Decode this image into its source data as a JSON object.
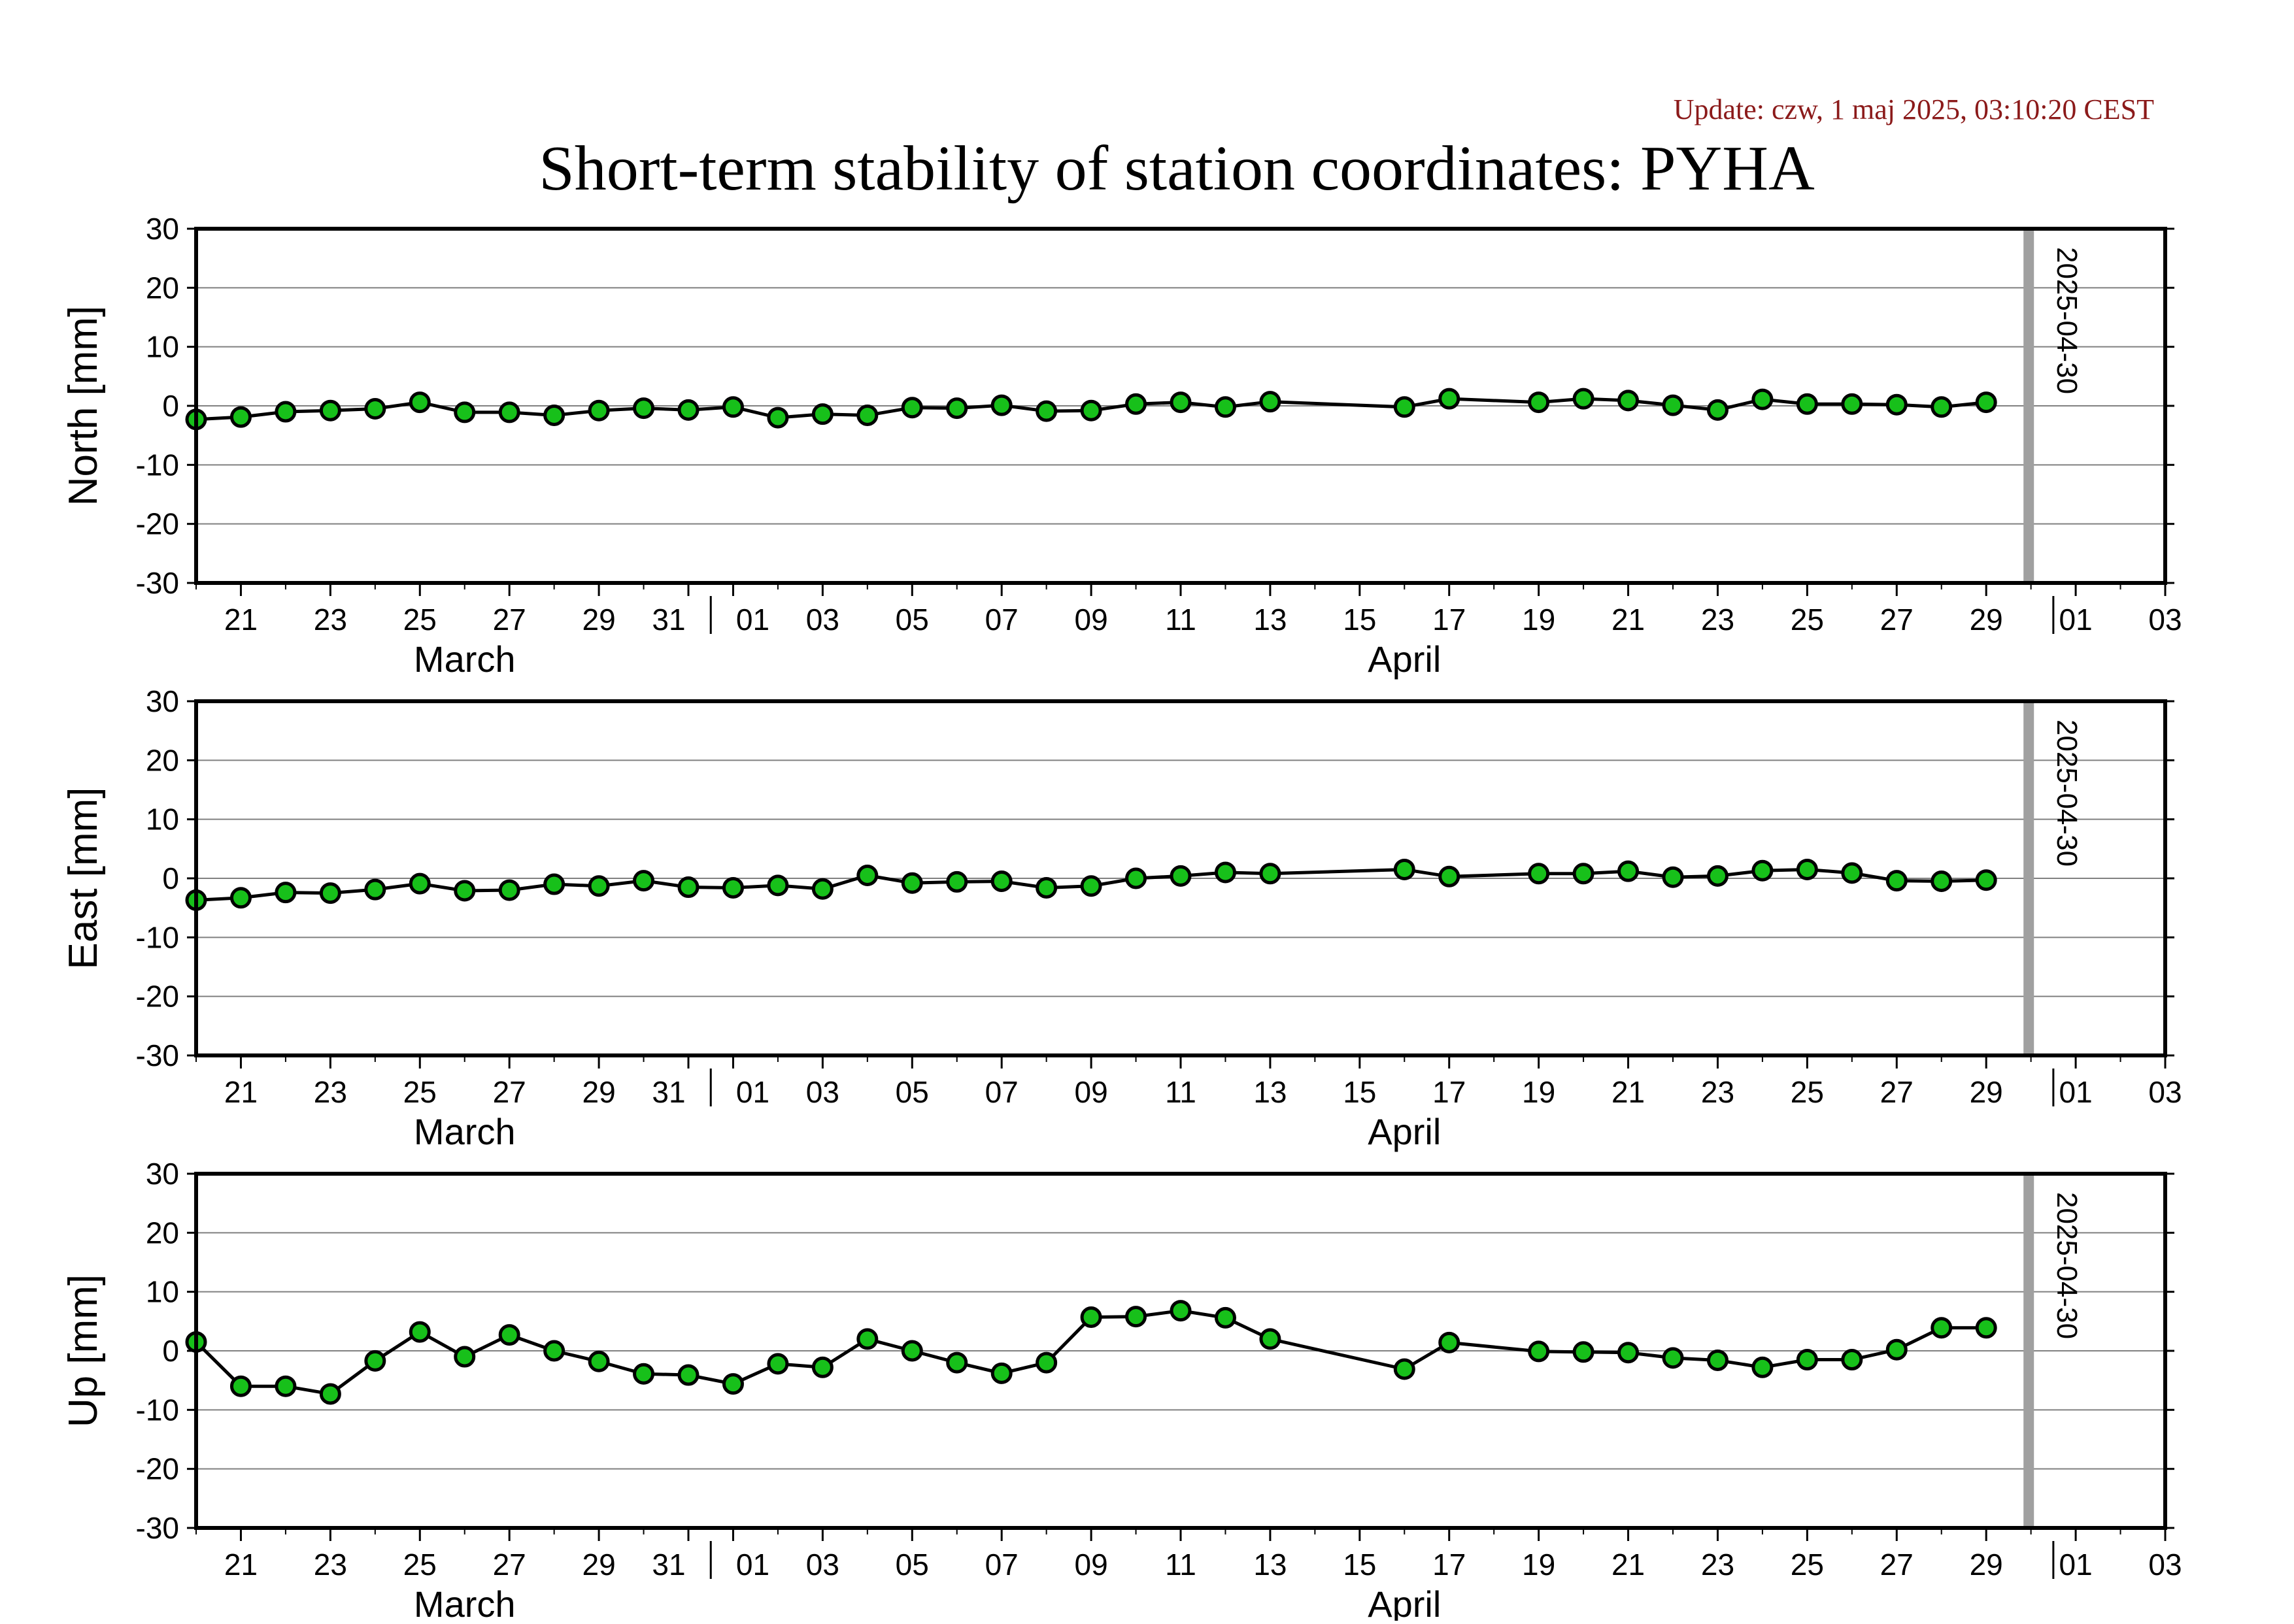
{
  "update_text": "Update: czw, 1 maj 2025, 03:10:20 CEST",
  "title": "Short-term stability of station coordinates: PYHA",
  "colors": {
    "marker_fill": "#17c01a",
    "marker_stroke": "#000000",
    "line": "#000000",
    "grid": "#808080",
    "current_date_line": "#a0a0a0",
    "update_text": "#8b1a1a",
    "axis": "#000000"
  },
  "chart_data": [
    {
      "type": "line",
      "ylabel": "North [mm]",
      "ylim": [
        -30,
        30
      ],
      "y_ticks": [
        30,
        20,
        10,
        0,
        -10,
        -20,
        -30
      ],
      "x_ticks": [
        "21",
        "23",
        "25",
        "27",
        "29",
        "31",
        "01",
        "05",
        "07",
        "09",
        "11",
        "13",
        "17",
        "19",
        "21",
        "23",
        "25",
        "27",
        "29",
        "01",
        "03"
      ],
      "x_ticks_full": [
        "21",
        "23",
        "25",
        "27",
        "29",
        "31",
        "01",
        "03",
        "05",
        "07",
        "09",
        "11",
        "13",
        "15",
        "17",
        "19",
        "21",
        "23",
        "25",
        "27",
        "29",
        "01",
        "03"
      ],
      "month_labels": [
        {
          "label": "March",
          "date": "2025-03-26"
        },
        {
          "label": "April",
          "date": "2025-04-16"
        }
      ],
      "x_range": [
        "2025-03-20",
        "2025-05-03"
      ],
      "current_date": "2025-04-30",
      "grid": true,
      "x": [
        "2025-03-20",
        "2025-03-21",
        "2025-03-22",
        "2025-03-23",
        "2025-03-24",
        "2025-03-25",
        "2025-03-26",
        "2025-03-27",
        "2025-03-28",
        "2025-03-29",
        "2025-03-30",
        "2025-03-31",
        "2025-04-01",
        "2025-04-02",
        "2025-04-03",
        "2025-04-04",
        "2025-04-05",
        "2025-04-06",
        "2025-04-07",
        "2025-04-08",
        "2025-04-09",
        "2025-04-10",
        "2025-04-11",
        "2025-04-12",
        "2025-04-13",
        "2025-04-16",
        "2025-04-17",
        "2025-04-19",
        "2025-04-20",
        "2025-04-21",
        "2025-04-22",
        "2025-04-23",
        "2025-04-24",
        "2025-04-25",
        "2025-04-26",
        "2025-04-27",
        "2025-04-28",
        "2025-04-29"
      ],
      "values": [
        -2.3,
        -1.9,
        -1.0,
        -0.8,
        -0.5,
        0.6,
        -1.1,
        -1.1,
        -1.6,
        -0.8,
        -0.4,
        -0.7,
        -0.2,
        -2.0,
        -1.4,
        -1.6,
        -0.3,
        -0.4,
        0.1,
        -0.9,
        -0.8,
        0.3,
        0.6,
        -0.2,
        0.7,
        -0.2,
        1.2,
        0.6,
        1.2,
        0.9,
        0.1,
        -0.7,
        1.1,
        0.3,
        0.3,
        0.2,
        -0.2,
        0.6
      ]
    },
    {
      "type": "line",
      "ylabel": "East [mm]",
      "ylim": [
        -30,
        30
      ],
      "y_ticks": [
        30,
        20,
        10,
        0,
        -10,
        -20,
        -30
      ],
      "x_ticks_full": [
        "21",
        "23",
        "25",
        "27",
        "29",
        "31",
        "01",
        "03",
        "05",
        "07",
        "09",
        "11",
        "13",
        "15",
        "17",
        "19",
        "21",
        "23",
        "25",
        "27",
        "29",
        "01",
        "03"
      ],
      "month_labels": [
        {
          "label": "March",
          "date": "2025-03-26"
        },
        {
          "label": "April",
          "date": "2025-04-16"
        }
      ],
      "x_range": [
        "2025-03-20",
        "2025-05-03"
      ],
      "current_date": "2025-04-30",
      "grid": true,
      "x": [
        "2025-03-20",
        "2025-03-21",
        "2025-03-22",
        "2025-03-23",
        "2025-03-24",
        "2025-03-25",
        "2025-03-26",
        "2025-03-27",
        "2025-03-28",
        "2025-03-29",
        "2025-03-30",
        "2025-03-31",
        "2025-04-01",
        "2025-04-02",
        "2025-04-03",
        "2025-04-04",
        "2025-04-05",
        "2025-04-06",
        "2025-04-07",
        "2025-04-08",
        "2025-04-09",
        "2025-04-10",
        "2025-04-11",
        "2025-04-12",
        "2025-04-13",
        "2025-04-16",
        "2025-04-17",
        "2025-04-19",
        "2025-04-20",
        "2025-04-21",
        "2025-04-22",
        "2025-04-23",
        "2025-04-24",
        "2025-04-25",
        "2025-04-26",
        "2025-04-27",
        "2025-04-28",
        "2025-04-29"
      ],
      "values": [
        -3.7,
        -3.3,
        -2.4,
        -2.5,
        -1.9,
        -0.9,
        -2.1,
        -2.0,
        -1.0,
        -1.3,
        -0.4,
        -1.5,
        -1.6,
        -1.2,
        -1.8,
        0.5,
        -0.8,
        -0.6,
        -0.5,
        -1.6,
        -1.3,
        0.0,
        0.4,
        1.0,
        0.8,
        1.5,
        0.3,
        0.8,
        0.8,
        1.2,
        0.2,
        0.4,
        1.3,
        1.5,
        0.9,
        -0.4,
        -0.5,
        -0.3
      ]
    },
    {
      "type": "line",
      "ylabel": "Up [mm]",
      "ylim": [
        -30,
        30
      ],
      "y_ticks": [
        30,
        20,
        10,
        0,
        -10,
        -20,
        -30
      ],
      "x_ticks_full": [
        "21",
        "23",
        "25",
        "27",
        "29",
        "31",
        "01",
        "03",
        "05",
        "07",
        "09",
        "11",
        "13",
        "15",
        "17",
        "19",
        "21",
        "23",
        "25",
        "27",
        "29",
        "01",
        "03"
      ],
      "month_labels": [
        {
          "label": "March",
          "date": "2025-03-26"
        },
        {
          "label": "April",
          "date": "2025-04-16"
        }
      ],
      "x_range": [
        "2025-03-20",
        "2025-05-03"
      ],
      "current_date": "2025-04-30",
      "grid": true,
      "x": [
        "2025-03-20",
        "2025-03-21",
        "2025-03-22",
        "2025-03-23",
        "2025-03-24",
        "2025-03-25",
        "2025-03-26",
        "2025-03-27",
        "2025-03-28",
        "2025-03-29",
        "2025-03-30",
        "2025-03-31",
        "2025-04-01",
        "2025-04-02",
        "2025-04-03",
        "2025-04-04",
        "2025-04-05",
        "2025-04-06",
        "2025-04-07",
        "2025-04-08",
        "2025-04-09",
        "2025-04-10",
        "2025-04-11",
        "2025-04-12",
        "2025-04-13",
        "2025-04-16",
        "2025-04-17",
        "2025-04-19",
        "2025-04-20",
        "2025-04-21",
        "2025-04-22",
        "2025-04-23",
        "2025-04-24",
        "2025-04-25",
        "2025-04-26",
        "2025-04-27",
        "2025-04-28",
        "2025-04-29"
      ],
      "values": [
        1.5,
        -6.0,
        -6.0,
        -7.3,
        -1.7,
        3.2,
        -1.0,
        2.7,
        0.0,
        -1.8,
        -3.9,
        -4.1,
        -5.6,
        -2.2,
        -2.8,
        2.0,
        0.0,
        -2.0,
        -3.8,
        -2.0,
        5.7,
        5.8,
        6.8,
        5.6,
        2.0,
        -3.1,
        1.4,
        -0.1,
        -0.2,
        -0.3,
        -1.2,
        -1.6,
        -2.8,
        -1.5,
        -1.5,
        0.2,
        3.9,
        3.9
      ]
    }
  ]
}
